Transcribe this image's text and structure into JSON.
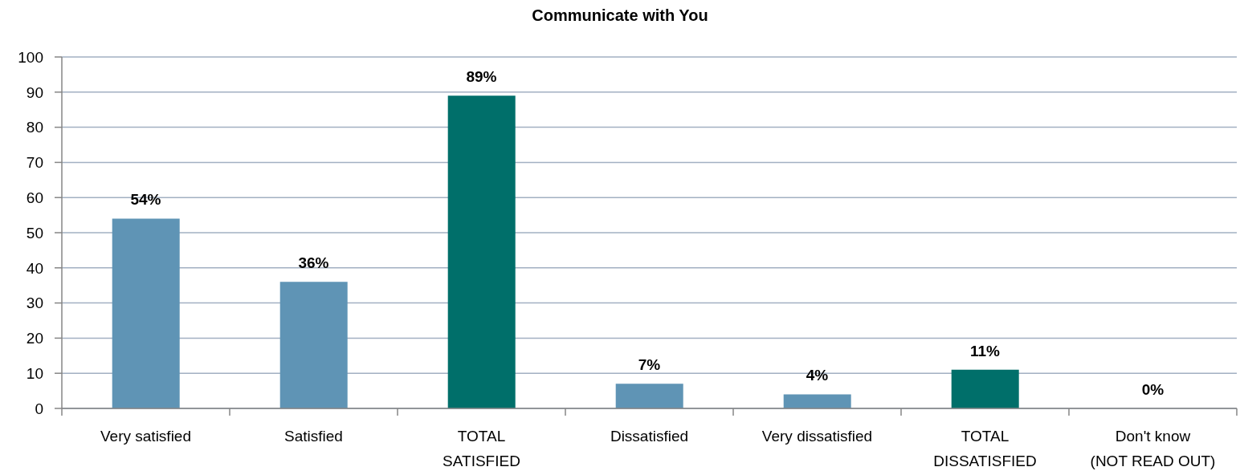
{
  "chart_data": {
    "type": "bar",
    "title": "Communicate with You",
    "categories": [
      "Very satisfied",
      "Satisfied",
      "TOTAL SATISFIED",
      "Dissatisfied",
      "Very dissatisfied",
      "TOTAL DISSATISFIED",
      "Don't know (NOT READ OUT)"
    ],
    "values": [
      54,
      36,
      89,
      7,
      4,
      11,
      0
    ],
    "colors": [
      "#5f94b5",
      "#5f94b5",
      "#006f6a",
      "#5f94b5",
      "#5f94b5",
      "#006f6a",
      "#5f94b5"
    ],
    "value_labels": [
      "54%",
      "36%",
      "89%",
      "7%",
      "4%",
      "11%",
      "0%"
    ],
    "ylim": [
      0,
      100
    ],
    "yticks": [
      0,
      10,
      20,
      30,
      40,
      50,
      60,
      70,
      80,
      90,
      100
    ],
    "grid": "y"
  }
}
